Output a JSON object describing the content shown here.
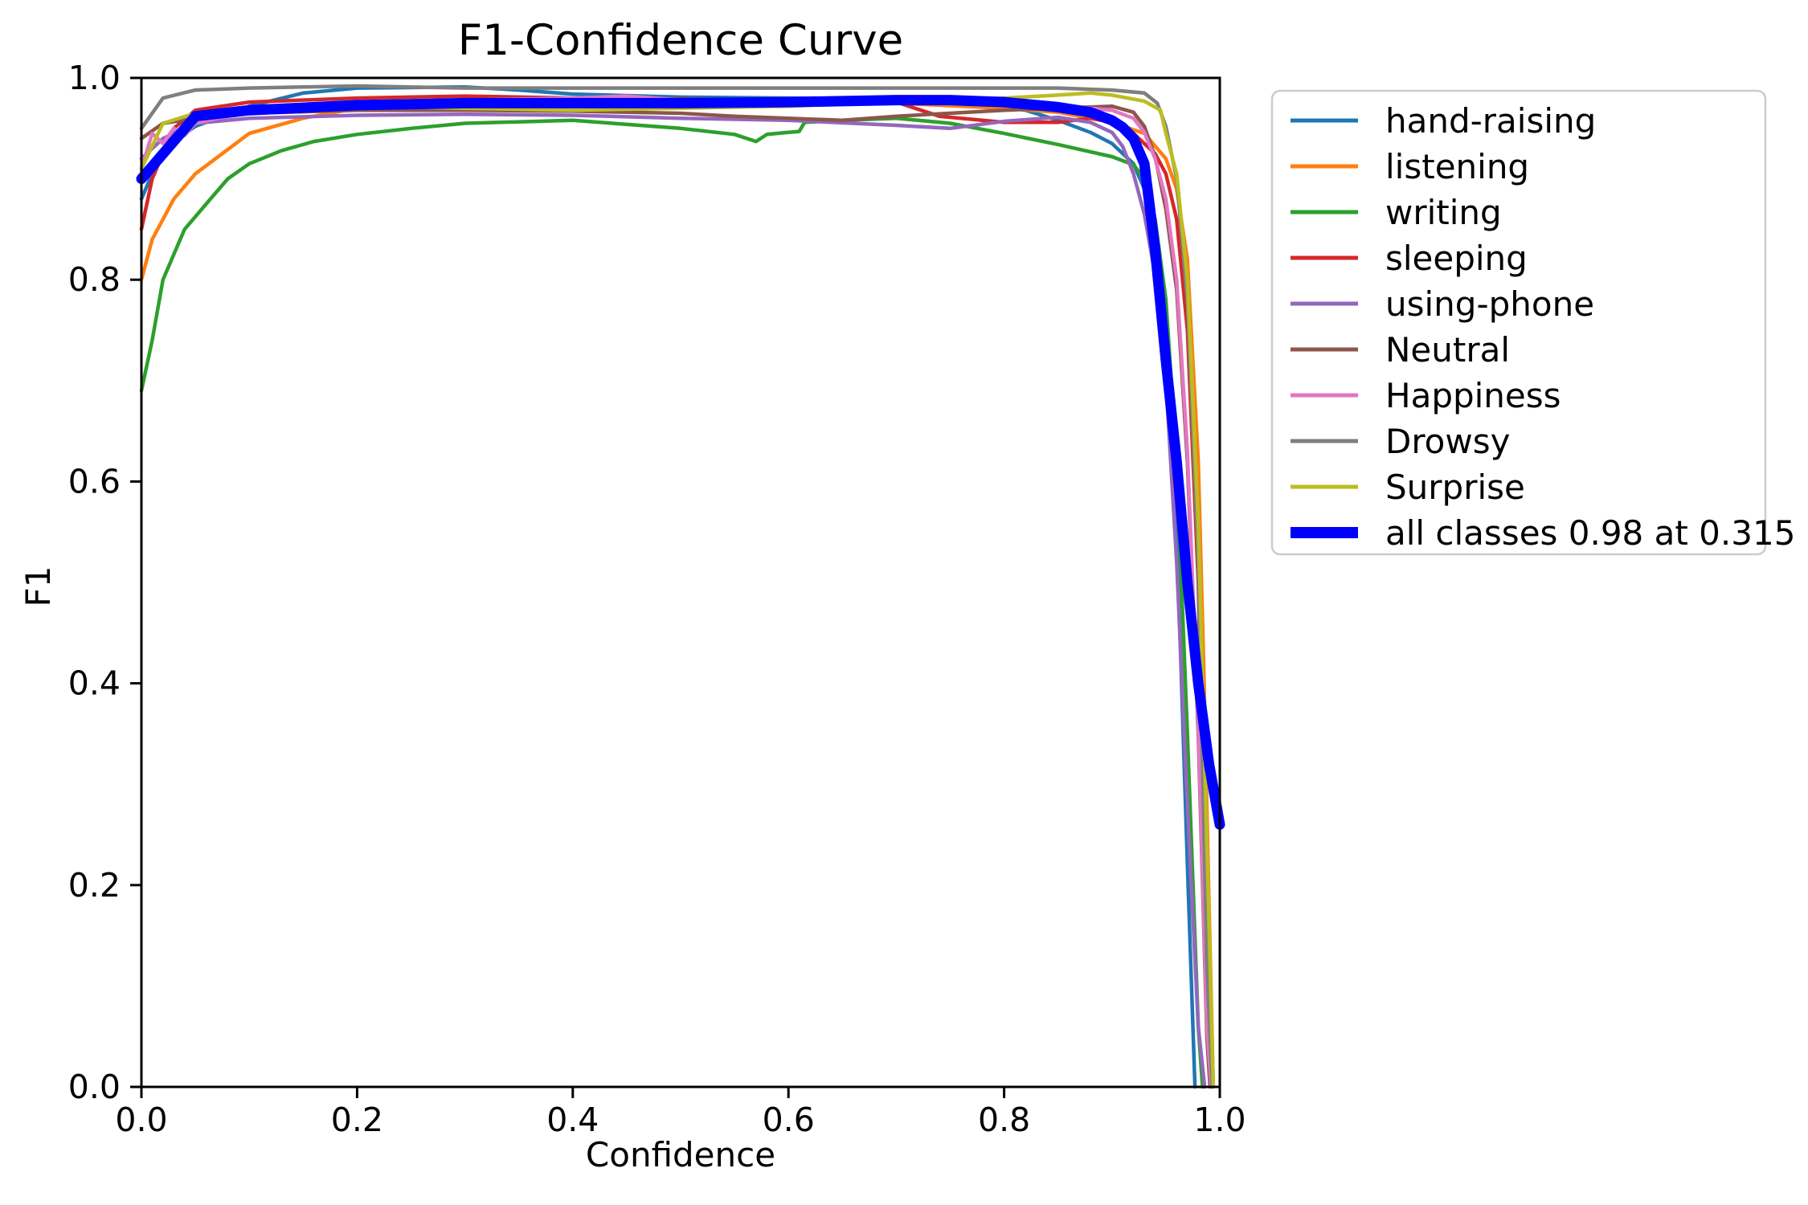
{
  "figure": {
    "background": "#ffffff"
  },
  "chart_data": {
    "type": "line",
    "title": "F1-Confidence Curve",
    "xlabel": "Confidence",
    "ylabel": "F1",
    "xlim": [
      0.0,
      1.0
    ],
    "ylim": [
      0.0,
      1.0
    ],
    "xtick_labels": [
      "0.0",
      "0.2",
      "0.4",
      "0.6",
      "0.8",
      "1.0"
    ],
    "ytick_labels": [
      "0.0",
      "0.2",
      "0.4",
      "0.6",
      "0.8",
      "1.0"
    ],
    "grid": false,
    "legend": {
      "position": "outside-upper-right",
      "border_color": "#cccccc",
      "background": "#ffffff"
    },
    "series": [
      {
        "name": "hand-raising",
        "color": "#1f77b4",
        "line_width": 4.5,
        "x": [
          0,
          0.02,
          0.05,
          0.1,
          0.15,
          0.2,
          0.3,
          0.35,
          0.4,
          0.5,
          0.6,
          0.7,
          0.78,
          0.82,
          0.85,
          0.88,
          0.9,
          0.92,
          0.93,
          0.94,
          0.95,
          0.96,
          0.97,
          0.977
        ],
        "y": [
          0.88,
          0.93,
          0.952,
          0.972,
          0.985,
          0.99,
          0.991,
          0.988,
          0.984,
          0.981,
          0.98,
          0.979,
          0.974,
          0.968,
          0.958,
          0.946,
          0.935,
          0.915,
          0.89,
          0.84,
          0.75,
          0.55,
          0.22,
          0
        ]
      },
      {
        "name": "listening",
        "color": "#ff7f0e",
        "line_width": 4.5,
        "x": [
          0,
          0.01,
          0.03,
          0.05,
          0.1,
          0.15,
          0.2,
          0.3,
          0.4,
          0.5,
          0.6,
          0.7,
          0.8,
          0.85,
          0.9,
          0.93,
          0.95,
          0.96,
          0.97,
          0.98,
          0.985,
          0.99,
          0.994
        ],
        "y": [
          0.8,
          0.84,
          0.88,
          0.905,
          0.945,
          0.96,
          0.97,
          0.976,
          0.976,
          0.975,
          0.975,
          0.975,
          0.97,
          0.966,
          0.956,
          0.945,
          0.92,
          0.89,
          0.82,
          0.62,
          0.42,
          0.18,
          0
        ]
      },
      {
        "name": "writing",
        "color": "#2ca02c",
        "line_width": 4.5,
        "x": [
          0,
          0.01,
          0.02,
          0.04,
          0.06,
          0.08,
          0.1,
          0.13,
          0.16,
          0.2,
          0.25,
          0.3,
          0.4,
          0.5,
          0.55,
          0.57,
          0.58,
          0.6,
          0.61,
          0.615,
          0.65,
          0.7,
          0.75,
          0.8,
          0.85,
          0.9,
          0.92,
          0.93,
          0.94,
          0.95,
          0.96,
          0.97,
          0.98,
          0.984
        ],
        "y": [
          0.69,
          0.74,
          0.8,
          0.85,
          0.875,
          0.9,
          0.915,
          0.928,
          0.937,
          0.944,
          0.95,
          0.955,
          0.958,
          0.95,
          0.944,
          0.937,
          0.944,
          0.946,
          0.947,
          0.956,
          0.958,
          0.96,
          0.955,
          0.945,
          0.934,
          0.922,
          0.914,
          0.9,
          0.86,
          0.78,
          0.62,
          0.35,
          0.06,
          0
        ]
      },
      {
        "name": "sleeping",
        "color": "#d62728",
        "line_width": 4.5,
        "x": [
          0,
          0.01,
          0.03,
          0.05,
          0.1,
          0.2,
          0.3,
          0.4,
          0.5,
          0.6,
          0.7,
          0.74,
          0.8,
          0.85,
          0.88,
          0.9,
          0.92,
          0.94,
          0.95,
          0.96,
          0.97,
          0.98,
          0.988,
          0.992
        ],
        "y": [
          0.85,
          0.9,
          0.95,
          0.968,
          0.976,
          0.98,
          0.982,
          0.98,
          0.979,
          0.978,
          0.976,
          0.962,
          0.956,
          0.956,
          0.96,
          0.956,
          0.945,
          0.925,
          0.905,
          0.86,
          0.75,
          0.5,
          0.1,
          0
        ]
      },
      {
        "name": "using-phone",
        "color": "#9467bd",
        "line_width": 4.5,
        "x": [
          0,
          0.02,
          0.05,
          0.1,
          0.2,
          0.3,
          0.4,
          0.5,
          0.6,
          0.7,
          0.75,
          0.8,
          0.85,
          0.88,
          0.9,
          0.91,
          0.92,
          0.93,
          0.94,
          0.95,
          0.96,
          0.97,
          0.98,
          0.986
        ],
        "y": [
          0.92,
          0.94,
          0.955,
          0.96,
          0.963,
          0.964,
          0.963,
          0.96,
          0.958,
          0.953,
          0.95,
          0.957,
          0.961,
          0.956,
          0.946,
          0.932,
          0.905,
          0.865,
          0.805,
          0.7,
          0.52,
          0.28,
          0.06,
          0
        ]
      },
      {
        "name": "Neutral",
        "color": "#8c564b",
        "line_width": 4.5,
        "x": [
          0,
          0.02,
          0.05,
          0.1,
          0.2,
          0.3,
          0.4,
          0.5,
          0.55,
          0.6,
          0.65,
          0.7,
          0.8,
          0.85,
          0.9,
          0.92,
          0.93,
          0.94,
          0.95,
          0.96,
          0.97,
          0.98,
          0.988,
          0.991
        ],
        "y": [
          0.94,
          0.955,
          0.96,
          0.965,
          0.968,
          0.968,
          0.967,
          0.965,
          0.962,
          0.96,
          0.958,
          0.962,
          0.968,
          0.97,
          0.972,
          0.966,
          0.952,
          0.922,
          0.87,
          0.79,
          0.62,
          0.35,
          0.05,
          0
        ]
      },
      {
        "name": "Happiness",
        "color": "#e377c2",
        "line_width": 4.5,
        "x": [
          0,
          0.01,
          0.02,
          0.03,
          0.04,
          0.05,
          0.07,
          0.1,
          0.2,
          0.3,
          0.4,
          0.45,
          0.5,
          0.6,
          0.7,
          0.8,
          0.85,
          0.88,
          0.9,
          0.92,
          0.93,
          0.94,
          0.95,
          0.96,
          0.97,
          0.98,
          0.988,
          0.992
        ],
        "y": [
          0.91,
          0.945,
          0.935,
          0.95,
          0.943,
          0.955,
          0.96,
          0.965,
          0.975,
          0.978,
          0.98,
          0.982,
          0.978,
          0.977,
          0.977,
          0.975,
          0.972,
          0.97,
          0.968,
          0.96,
          0.946,
          0.92,
          0.88,
          0.8,
          0.63,
          0.36,
          0.06,
          0
        ]
      },
      {
        "name": "Drowsy",
        "color": "#7f7f7f",
        "line_width": 4.5,
        "x": [
          0,
          0.02,
          0.05,
          0.1,
          0.15,
          0.2,
          0.3,
          0.4,
          0.5,
          0.6,
          0.7,
          0.8,
          0.85,
          0.9,
          0.93,
          0.942,
          0.95,
          0.96,
          0.97,
          0.98,
          0.988,
          0.993
        ],
        "y": [
          0.95,
          0.98,
          0.988,
          0.99,
          0.991,
          0.992,
          0.99,
          0.99,
          0.99,
          0.99,
          0.99,
          0.99,
          0.99,
          0.988,
          0.985,
          0.975,
          0.952,
          0.9,
          0.78,
          0.52,
          0.12,
          0
        ]
      },
      {
        "name": "Surprise",
        "color": "#bcbd22",
        "line_width": 4.5,
        "x": [
          0,
          0.02,
          0.05,
          0.1,
          0.2,
          0.3,
          0.4,
          0.5,
          0.6,
          0.7,
          0.8,
          0.85,
          0.88,
          0.9,
          0.93,
          0.945,
          0.95,
          0.96,
          0.97,
          0.98,
          0.99,
          0.994
        ],
        "y": [
          0.91,
          0.955,
          0.965,
          0.97,
          0.972,
          0.97,
          0.968,
          0.97,
          0.972,
          0.976,
          0.98,
          0.983,
          0.985,
          0.983,
          0.977,
          0.968,
          0.945,
          0.905,
          0.8,
          0.56,
          0.16,
          0
        ]
      },
      {
        "name": "all classes 0.98 at 0.315",
        "color": "#0000ff",
        "line_width": 13,
        "x": [
          0,
          0.05,
          0.1,
          0.2,
          0.3,
          0.315,
          0.4,
          0.5,
          0.6,
          0.7,
          0.75,
          0.8,
          0.85,
          0.88,
          0.9,
          0.91,
          0.92,
          0.93,
          0.94,
          0.95,
          0.96,
          0.97,
          0.98,
          0.99,
          1.0
        ],
        "y": [
          0.9,
          0.962,
          0.968,
          0.973,
          0.975,
          0.975,
          0.975,
          0.975,
          0.976,
          0.978,
          0.978,
          0.976,
          0.971,
          0.966,
          0.958,
          0.951,
          0.94,
          0.915,
          0.83,
          0.72,
          0.62,
          0.5,
          0.4,
          0.32,
          0.26
        ]
      }
    ]
  }
}
